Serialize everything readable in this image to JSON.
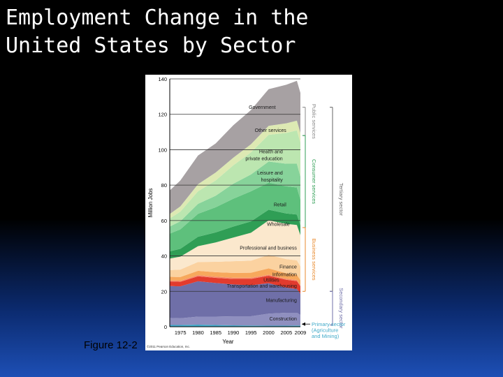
{
  "slide": {
    "title": "Employment Change in the\nUnited States by Sector",
    "caption": "Figure 12-2"
  },
  "chart_data": {
    "type": "area",
    "xlabel": "Year",
    "ylabel": "Million Jobs",
    "xlim": [
      1972,
      2009
    ],
    "ylim": [
      0,
      140
    ],
    "xticks": [
      1975,
      1980,
      1985,
      1990,
      1995,
      2000,
      2005,
      2009
    ],
    "yticks": [
      0,
      20,
      40,
      60,
      80,
      100,
      120,
      140
    ],
    "grid": true,
    "x": [
      1972,
      1975,
      1980,
      1985,
      1990,
      1995,
      2000,
      2005,
      2008,
      2009
    ],
    "series": [
      {
        "name": "Primary sector (Agriculture and Mining)",
        "color": "#3fa9c8",
        "values": [
          1.0,
          1.0,
          1.2,
          1.0,
          0.8,
          0.7,
          0.6,
          0.6,
          0.7,
          0.7
        ]
      },
      {
        "name": "Construction",
        "color": "#8f8fbf",
        "values": [
          4.0,
          3.8,
          4.5,
          4.7,
          5.1,
          5.2,
          6.8,
          7.3,
          7.2,
          6.0
        ]
      },
      {
        "name": "Manufacturing",
        "color": "#6f6fa8",
        "values": [
          18.0,
          18.0,
          20.0,
          19.0,
          18.0,
          17.5,
          17.2,
          14.2,
          13.4,
          11.9
        ]
      },
      {
        "name": "Transportation and warehousing",
        "color": "#e23b2e",
        "values": [
          2.6,
          2.6,
          2.8,
          2.9,
          3.1,
          3.6,
          4.2,
          4.4,
          4.5,
          4.3
        ]
      },
      {
        "name": "Utilities",
        "color": "#f48b6a",
        "values": [
          0.6,
          0.6,
          0.7,
          0.7,
          0.7,
          0.7,
          0.6,
          0.6,
          0.6,
          0.6
        ]
      },
      {
        "name": "Information",
        "color": "#f7a85c",
        "values": [
          2.0,
          2.1,
          2.4,
          2.5,
          2.7,
          2.8,
          3.6,
          3.1,
          3.0,
          2.8
        ]
      },
      {
        "name": "Finance",
        "color": "#fbd2a0",
        "values": [
          3.8,
          4.2,
          5.0,
          5.9,
          6.6,
          6.8,
          7.6,
          8.0,
          8.1,
          7.8
        ]
      },
      {
        "name": "Professional and business",
        "color": "#fbe8cd",
        "values": [
          6.5,
          7.3,
          8.9,
          10.9,
          13.4,
          15.8,
          19.5,
          19.9,
          20.0,
          17.6
        ]
      },
      {
        "name": "Wholesale",
        "color": "#2f9e55",
        "values": [
          4.1,
          4.4,
          5.3,
          5.7,
          6.2,
          6.4,
          6.0,
          5.9,
          5.9,
          5.6
        ]
      },
      {
        "name": "Retail",
        "color": "#5ec07c",
        "values": [
          10.0,
          11.0,
          13.0,
          14.2,
          15.7,
          17.0,
          15.3,
          15.3,
          15.3,
          14.5
        ]
      },
      {
        "name": "Leisure and hospitality",
        "color": "#87d39a",
        "values": [
          4.0,
          4.6,
          5.6,
          6.5,
          8.5,
          9.5,
          11.9,
          12.8,
          13.4,
          13.1
        ]
      },
      {
        "name": "Health and private education",
        "color": "#bce6b0",
        "values": [
          4.6,
          5.4,
          7.1,
          8.6,
          10.4,
          12.5,
          15.1,
          17.4,
          18.8,
          19.2
        ]
      },
      {
        "name": "Other services",
        "color": "#dde9b3",
        "values": [
          2.5,
          3.0,
          4.0,
          4.5,
          4.3,
          4.6,
          5.1,
          5.4,
          5.5,
          5.4
        ]
      },
      {
        "name": "Government",
        "color": "#a7a1a3",
        "values": [
          13.3,
          14.6,
          16.2,
          16.4,
          18.3,
          19.3,
          20.7,
          21.8,
          22.5,
          22.6
        ]
      }
    ],
    "labels": [
      {
        "text": "Government",
        "x": 2002,
        "y": 123,
        "anchor": "end"
      },
      {
        "text": "Other services",
        "x": 2005,
        "y": 110,
        "anchor": "end"
      },
      {
        "text": "Health and",
        "x": 2004,
        "y": 98,
        "anchor": "end"
      },
      {
        "text": "private education",
        "x": 2004,
        "y": 94,
        "anchor": "end"
      },
      {
        "text": "Leisure and",
        "x": 2004,
        "y": 86,
        "anchor": "end"
      },
      {
        "text": "hospitality",
        "x": 2004,
        "y": 82,
        "anchor": "end"
      },
      {
        "text": "Retail",
        "x": 2005,
        "y": 68,
        "anchor": "end"
      },
      {
        "text": "Wholesale",
        "x": 2006,
        "y": 57,
        "anchor": "end"
      },
      {
        "text": "Professional and business",
        "x": 2008,
        "y": 43.5,
        "anchor": "end"
      },
      {
        "text": "Finance",
        "x": 2008,
        "y": 33,
        "anchor": "end"
      },
      {
        "text": "Information",
        "x": 2008,
        "y": 28.5,
        "anchor": "end"
      },
      {
        "text": "Utilities",
        "x": 2003,
        "y": 25.5,
        "anchor": "end"
      },
      {
        "text": "Transportation and warehousing",
        "x": 2008,
        "y": 22,
        "anchor": "end"
      },
      {
        "text": "Manufacturing",
        "x": 2008,
        "y": 14,
        "anchor": "end"
      },
      {
        "text": "Construction",
        "x": 2008,
        "y": 3.5,
        "anchor": "end"
      }
    ],
    "brackets": [
      {
        "label": "Public services",
        "from": 108,
        "to": 124,
        "level": 1,
        "color": "#888888"
      },
      {
        "label": "Consumer services",
        "from": 56,
        "to": 108,
        "level": 1,
        "color": "#2f9e55"
      },
      {
        "label": "Business services",
        "from": 20,
        "to": 56,
        "level": 1,
        "color": "#e8892c"
      },
      {
        "label": "Tertiary sector",
        "from": 20,
        "to": 124,
        "level": 2,
        "color": "#666666"
      },
      {
        "label": "Secondary sector",
        "from": 1,
        "to": 20,
        "level": 2,
        "color": "#6f6fa8"
      }
    ],
    "primary_label": {
      "lines": [
        "Primary sector",
        "(Agriculture",
        "and Mining)"
      ],
      "color": "#3fa9c8"
    },
    "credit": "©2011 Pearson Education, Inc."
  }
}
